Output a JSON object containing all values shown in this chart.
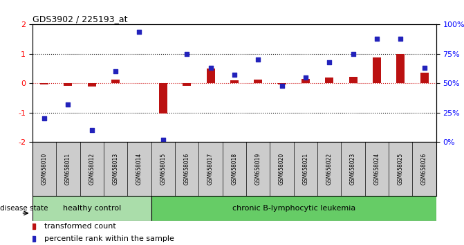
{
  "title": "GDS3902 / 225193_at",
  "samples": [
    "GSM658010",
    "GSM658011",
    "GSM658012",
    "GSM658013",
    "GSM658014",
    "GSM658015",
    "GSM658016",
    "GSM658017",
    "GSM658018",
    "GSM658019",
    "GSM658020",
    "GSM658021",
    "GSM658022",
    "GSM658023",
    "GSM658024",
    "GSM658025",
    "GSM658026"
  ],
  "transformed_count": [
    -0.03,
    -0.08,
    -0.12,
    0.12,
    0.0,
    -1.02,
    -0.08,
    0.5,
    0.1,
    0.12,
    -0.05,
    0.15,
    0.2,
    0.22,
    0.88,
    1.0,
    0.35
  ],
  "percentile_rank": [
    20,
    32,
    10,
    60,
    94,
    2,
    75,
    63,
    57,
    70,
    48,
    55,
    68,
    75,
    88,
    88,
    63
  ],
  "healthy_control_count": 5,
  "ylim_left": [
    -2,
    2
  ],
  "ylim_right": [
    0,
    100
  ],
  "yticks_left": [
    -2,
    -1,
    0,
    1,
    2
  ],
  "yticks_right": [
    0,
    25,
    50,
    75,
    100
  ],
  "ytick_labels_right": [
    "0%",
    "25%",
    "50%",
    "75%",
    "100%"
  ],
  "bar_color": "#bb1111",
  "scatter_color": "#2222bb",
  "hline_zero_color": "#cc0000",
  "hline_dotted_color": "#111111",
  "bg_color": "#ffffff",
  "plot_bg_color": "#ffffff",
  "healthy_bg": "#aaddaa",
  "leukemia_bg": "#66cc66",
  "xtick_bg": "#cccccc",
  "label_disease_state": "disease state",
  "label_healthy": "healthy control",
  "label_leukemia": "chronic B-lymphocytic leukemia",
  "legend_bar": "transformed count",
  "legend_scatter": "percentile rank within the sample",
  "bar_width": 0.35,
  "scatter_size": 22
}
